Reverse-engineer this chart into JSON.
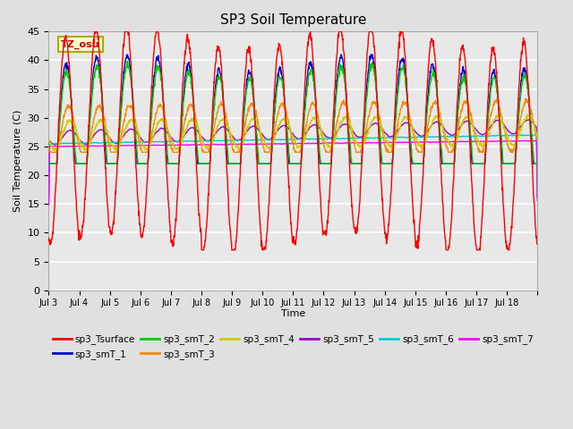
{
  "title": "SP3 Soil Temperature",
  "xlabel": "Time",
  "ylabel": "Soil Temperature (C)",
  "ylim": [
    0,
    45
  ],
  "yticks": [
    0,
    5,
    10,
    15,
    20,
    25,
    30,
    35,
    40,
    45
  ],
  "background_color": "#e0e0e0",
  "plot_bg_color": "#e8e8e8",
  "grid_color": "white",
  "tz_label": "TZ_osu",
  "series_colors": {
    "sp3_Tsurface": "#ff0000",
    "sp3_smT_1": "#0000cc",
    "sp3_smT_2": "#00cc00",
    "sp3_smT_3": "#ff8800",
    "sp3_smT_4": "#cccc00",
    "sp3_smT_5": "#9900cc",
    "sp3_smT_6": "#00cccc",
    "sp3_smT_7": "#ff00ff"
  },
  "x_tick_labels": [
    "Jul 3",
    "Jul 4",
    "Jul 5",
    "Jul 6",
    "Jul 7",
    "Jul 8",
    "Jul 9",
    "Jul 10",
    "Jul 11",
    "Jul 12",
    "Jul 13",
    "Jul 14",
    "Jul 15",
    "Jul 16",
    "Jul 17",
    "Jul 18"
  ],
  "n_days": 16,
  "points_per_day": 96,
  "figsize": [
    6.4,
    4.8
  ],
  "dpi": 100
}
